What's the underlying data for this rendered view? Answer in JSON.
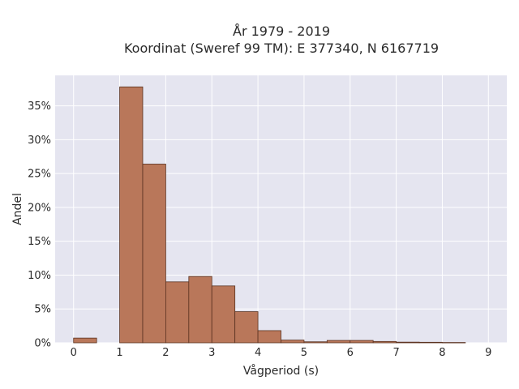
{
  "chart_data": {
    "type": "bar",
    "title": "År 1979 - 2019",
    "subtitle": "Koordinat (Sweref 99 TM): E 377340, N 6167719",
    "xlabel": "Vågperiod (s)",
    "ylabel": "Andel",
    "bin_width": 0.5,
    "x": [
      0,
      1,
      1.5,
      2,
      2.5,
      3,
      3.5,
      4,
      4.5,
      5,
      5.5,
      6,
      6.5,
      7,
      7.5,
      8
    ],
    "values": [
      0.7,
      37.8,
      26.4,
      9.0,
      9.8,
      8.4,
      4.6,
      1.8,
      0.4,
      0.15,
      0.35,
      0.35,
      0.2,
      0.1,
      0.08,
      0.05
    ],
    "xlim": [
      -0.4,
      9.4
    ],
    "ylim": [
      0,
      39.5
    ],
    "x_ticks": [
      0,
      1,
      2,
      3,
      4,
      5,
      6,
      7,
      8,
      9
    ],
    "x_tick_labels": [
      "0",
      "1",
      "2",
      "3",
      "4",
      "5",
      "6",
      "7",
      "8",
      "9"
    ],
    "y_ticks": [
      0,
      5,
      10,
      15,
      20,
      25,
      30,
      35
    ],
    "y_tick_labels": [
      "0%",
      "5%",
      "10%",
      "15%",
      "20%",
      "25%",
      "30%",
      "35%"
    ],
    "grid": true,
    "colors": {
      "bar_fill": "#b9775a",
      "bar_stroke": "#5a3220",
      "plot_bg": "#e5e5f0",
      "grid": "#ffffff"
    }
  }
}
